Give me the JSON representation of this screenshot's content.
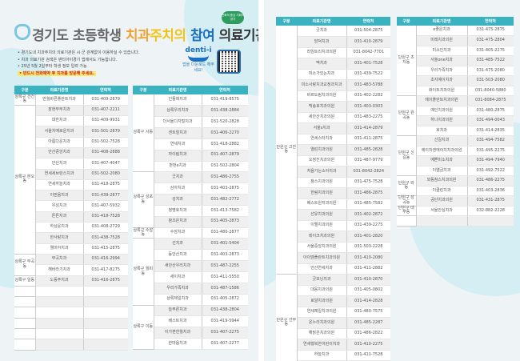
{
  "header": {
    "title_parts": [
      "경기도 초등학생 ",
      "치과",
      "주치의 ",
      "참여 ",
      "의료기관"
    ],
    "badge": "변화의 중심 기회의 경기",
    "bullets": [
      "• 경기도내 치과주치의 의료기관은 시·군 관계없이 이용하실 수 있습니다.",
      "• 치과 의료기관 검색은 덴티아이경기 앱에서도 가능합니다.",
      "• 25년 5월 2일부터 학생 정보 입력 가능",
      "• 반드시 전화예약 후 치과를 방문해 주세요."
    ],
    "app_logo": "denti-i",
    "app_download": "앱을 다운로드 해주세요!",
    "colors": {
      "header_teal": "#3bb2c0",
      "title_orange": "#f0a030",
      "title_yellow": "#f2c318",
      "title_blue": "#1a70c4",
      "warning_red": "#d02020"
    }
  },
  "columns": [
    "구분",
    "의료기관명",
    "연락처"
  ],
  "tables": [
    {
      "groups": [
        {
          "district": "상록구 건건동",
          "rows": [
            [
              "반월바른플란트치과",
              "031-409-2879"
            ]
          ]
        },
        {
          "district": "상록구 본오동",
          "rows": [
            [
              "장현부부치과",
              "031-407-2211"
            ],
            [
              "대한치과",
              "031-409-9931"
            ],
            [
              "서울치예로운치과",
              "031-501-2879"
            ],
            [
              "아름다운치과",
              "031-502-7528"
            ],
            [
              "안산중앙치과",
              "031-408-2888"
            ],
            [
              "안산치과",
              "031-407-4047"
            ],
            [
              "연세세브란스치과",
              "031-502-2080"
            ],
            [
              "연세하늘치과",
              "031-418-2875"
            ],
            [
              "이믿음치과",
              "031-439-2877"
            ],
            [
              "우성치과",
              "031-407-5932"
            ],
            [
              "튼튼치과",
              "031-418-7528"
            ],
            [
              "하상윤치과",
              "031-408-2729"
            ],
            [
              "한사랑치과",
              "031-438-7528"
            ],
            [
              "웰미아치과",
              "031-415-2875"
            ]
          ]
        },
        {
          "district": "상록구 부곡동",
          "rows": [
            [
              "부곡치과",
              "031-416-2994"
            ],
            [
              "해바라기치과",
              "031-417-8275"
            ]
          ]
        },
        {
          "district": "상록구 일동",
          "rows": [
            [
              "노동주치과",
              "031-416-2875"
            ]
          ]
        }
      ]
    },
    {
      "groups": [
        {
          "district": "상록구 사동",
          "rows": [
            [
              "인돌래치과",
              "031-419-8575"
            ],
            [
              "상록우리치과",
              "031-438-2884"
            ],
            [
              "더서울디지털치과",
              "031-520-2828"
            ],
            [
              "센트럴치과",
              "031-406-2270"
            ],
            [
              "연세치과",
              "031-418-2882"
            ],
            [
              "자이림치과",
              "031-407-2879"
            ],
            [
              "펀펀e치과",
              "031-502-2804"
            ]
          ]
        },
        {
          "district": "상록구 성포동",
          "rows": [
            [
              "굿치과",
              "031-486-2755"
            ],
            [
              "상아치과",
              "031-403-2875"
            ],
            [
              "성치과",
              "031-482-2772"
            ],
            [
              "청명호치과",
              "031-413-7582"
            ],
            [
              "참조은치과",
              "031-405-2873"
            ]
          ]
        },
        {
          "district": "상록구 수암동",
          "rows": [
            [
              "수암치과",
              "031-480-2877"
            ]
          ]
        },
        {
          "district": "상록구 월피동",
          "rows": [
            [
              "선치과",
              "031-401-5404"
            ],
            [
              "동안산치과",
              "031-403-2873"
            ],
            [
              "새안산우리치과",
              "031-487-2255"
            ],
            [
              "새이치과",
              "031-411-5550"
            ],
            [
              "우리가족치과",
              "031-487-1586"
            ],
            [
              "상록제일치과",
              "031-405-2872"
            ]
          ]
        },
        {
          "district": "상록구 이동",
          "rows": [
            [
              "늘푸른치과",
              "031-438-2804"
            ],
            [
              "베스트치과",
              "031-419-5944"
            ],
            [
              "이가편한월치과",
              "031-407-2275"
            ],
            [
              "한마음치과",
              "031-407-2277"
            ]
          ]
        }
      ]
    },
    {
      "groups": [
        {
          "district": "단원구 고잔동",
          "rows": [
            [
              "굿치과",
              "031-504-2875"
            ],
            [
              "담덕치과",
              "031-410-2879"
            ],
            [
              "라임트리치과의원",
              "031-8042-7701"
            ],
            [
              "맥치과",
              "031-401-7528"
            ],
            [
              "미소가있는치과",
              "031-439-7522"
            ],
            [
              "미소사랑치과교정과치과",
              "031-483-5788"
            ],
            [
              "바르도림치과의원",
              "031-402-2282"
            ],
            [
              "백송호치과의원",
              "031-403-0303"
            ],
            [
              "세안산치과의원",
              "031-483-2275"
            ],
            [
              "서울s치과",
              "031-414-2879"
            ],
            [
              "연세스타치과",
              "031-411-2875"
            ],
            [
              "열린치과의원",
              "031-485-2828"
            ],
            [
              "오정진치과의원",
              "031-487-9779"
            ],
            [
              "처음가는소아치과",
              "031-8042-2824"
            ],
            [
              "참스치과의원",
              "031-475-7528"
            ],
            [
              "한림치과의원",
              "031-486-2875"
            ],
            [
              "베스트원치과의원",
              "031-485-7582"
            ],
            [
              "선유치과의원",
              "031-402-2872"
            ],
            [
              "이엘치과의원",
              "031-439-2275"
            ],
            [
              "레이크치과의원",
              "031-401-2820"
            ],
            [
              "서울중앙치과의원",
              "031-503-2228"
            ],
            [
              "아이엠플란트치과의원",
              "031-410-2080"
            ],
            [
              "안산연세치과",
              "031-411-2882"
            ]
          ]
        },
        {
          "district": "단원구 선부동",
          "rows": [
            [
              "굿모닝치과",
              "031-410-2870"
            ],
            [
              "대웅치과의원",
              "031-405-0802"
            ],
            [
              "로얄치과의원",
              "031-414-2828"
            ],
            [
              "연세제일치과의원",
              "031-480-7575"
            ],
            [
              "온누리치과의원",
              "031-485-2287"
            ],
            [
              "해맑은치과의원",
              "031-486-2822"
            ],
            [
              "연세행복한어린이치과",
              "031-410-2275"
            ],
            [
              "하늘치과",
              "031-411-7528"
            ],
            [
              "한도병원 치과센터",
              "031-8040-1334"
            ]
          ]
        }
      ]
    },
    {
      "groups": [
        {
          "district": "단원구 초지동",
          "rows": [
            [
              "e좋은치과",
              "031-475-2875"
            ],
            [
              "미래치과의원",
              "031-475-2804"
            ],
            [
              "미소인치과",
              "031-405-2275"
            ],
            [
              "서울one치과",
              "031-485-7522"
            ],
            [
              "우리가족치과",
              "031-475-2080"
            ],
            [
              "초지예이치과",
              "031-503-2080"
            ],
            [
              "화이트치과의원",
              "031-8040-5880"
            ]
          ]
        },
        {
          "district": "단원구 원곡동",
          "rows": [
            [
              "에이플란트치과의원",
              "031-8084-2875"
            ],
            [
              "예인치과의원",
              "031-480-2875"
            ],
            [
              "하나치과의원",
              "031-494-0043"
            ],
            [
              "호치과",
              "031-414-2835"
            ]
          ]
        },
        {
          "district": "단원구 신길동",
          "rows": [
            [
              "신길치과",
              "031-494-7582"
            ],
            [
              "에이치앤에이치치과의원",
              "031-495-2275"
            ],
            [
              "예쁜미소치과",
              "031-494-7940"
            ],
            [
              "이엘금치과",
              "031-492-7522"
            ]
          ]
        },
        {
          "district": "단원구 와동",
          "rows": [
            [
              "와동참스치과의원",
              "031-486-2275"
            ],
            [
              "이클린치과",
              "031-403-2836"
            ]
          ]
        },
        {
          "district": "단원구 성곡동",
          "rows": [
            [
              "공단치과의원",
              "031-431-2875"
            ]
          ]
        },
        {
          "district": "단원구 대부동",
          "rows": [
            [
              "서울안심치과",
              "032-882-2228"
            ]
          ]
        }
      ]
    }
  ]
}
